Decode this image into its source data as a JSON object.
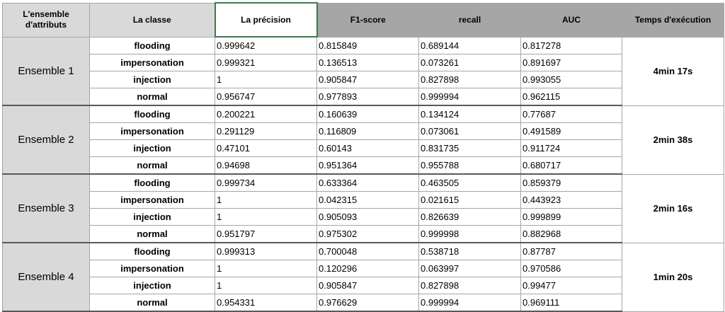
{
  "header": {
    "col1_line1": "L'ensemble",
    "col1_line2": "d'attributs",
    "col2": "La classe",
    "col3": "La précision",
    "col4": "F1-score",
    "col5": "recall",
    "col6": "AUC",
    "col7": "Temps d'exécution"
  },
  "groups": [
    {
      "name": "Ensemble 1",
      "time": "4min 17s",
      "rows": [
        {
          "cls": "flooding",
          "precision": "0.999642",
          "f1": "0.815849",
          "recall": "0.689144",
          "auc": "0.817278"
        },
        {
          "cls": "impersonation",
          "precision": "0.999321",
          "f1": "0.136513",
          "recall": "0.073261",
          "auc": "0.891697"
        },
        {
          "cls": "injection",
          "precision": "1",
          "f1": "0.905847",
          "recall": "0.827898",
          "auc": "0.993055"
        },
        {
          "cls": "normal",
          "precision": "0.956747",
          "f1": "0.977893",
          "recall": "0.999994",
          "auc": "0.962115"
        }
      ]
    },
    {
      "name": "Ensemble 2",
      "time": "2min 38s",
      "rows": [
        {
          "cls": "flooding",
          "precision": "0.200221",
          "f1": "0.160639",
          "recall": "0.134124",
          "auc": "0.77687"
        },
        {
          "cls": "impersonation",
          "precision": "0.291129",
          "f1": "0.116809",
          "recall": "0.073061",
          "auc": "0.491589"
        },
        {
          "cls": "injection",
          "precision": "0.47101",
          "f1": "0.60143",
          "recall": "0.831735",
          "auc": "0.911724"
        },
        {
          "cls": "normal",
          "precision": "0.94698",
          "f1": "0.951364",
          "recall": "0.955788",
          "auc": "0.680717"
        }
      ]
    },
    {
      "name": "Ensemble 3",
      "time": "2min 16s",
      "rows": [
        {
          "cls": "flooding",
          "precision": "0.999734",
          "f1": "0.633364",
          "recall": "0.463505",
          "auc": "0.859379"
        },
        {
          "cls": "impersonation",
          "precision": "1",
          "f1": "0.042315",
          "recall": "0.021615",
          "auc": "0.443923"
        },
        {
          "cls": "injection",
          "precision": "1",
          "f1": "0.905093",
          "recall": "0.826639",
          "auc": "0.999899"
        },
        {
          "cls": "normal",
          "precision": "0.951797",
          "f1": "0.975302",
          "recall": "0.999998",
          "auc": "0.882968"
        }
      ]
    },
    {
      "name": "Ensemble 4",
      "time": "1min 20s",
      "rows": [
        {
          "cls": "flooding",
          "precision": "0.999313",
          "f1": "0.700048",
          "recall": "0.538718",
          "auc": "0.87787"
        },
        {
          "cls": "impersonation",
          "precision": "1",
          "f1": "0.120296",
          "recall": "0.063997",
          "auc": "0.970586"
        },
        {
          "cls": "injection",
          "precision": "1",
          "f1": "0.905847",
          "recall": "0.827898",
          "auc": "0.99477"
        },
        {
          "cls": "normal",
          "precision": "0.954331",
          "f1": "0.976629",
          "recall": "0.999994",
          "auc": "0.969111"
        }
      ]
    }
  ]
}
